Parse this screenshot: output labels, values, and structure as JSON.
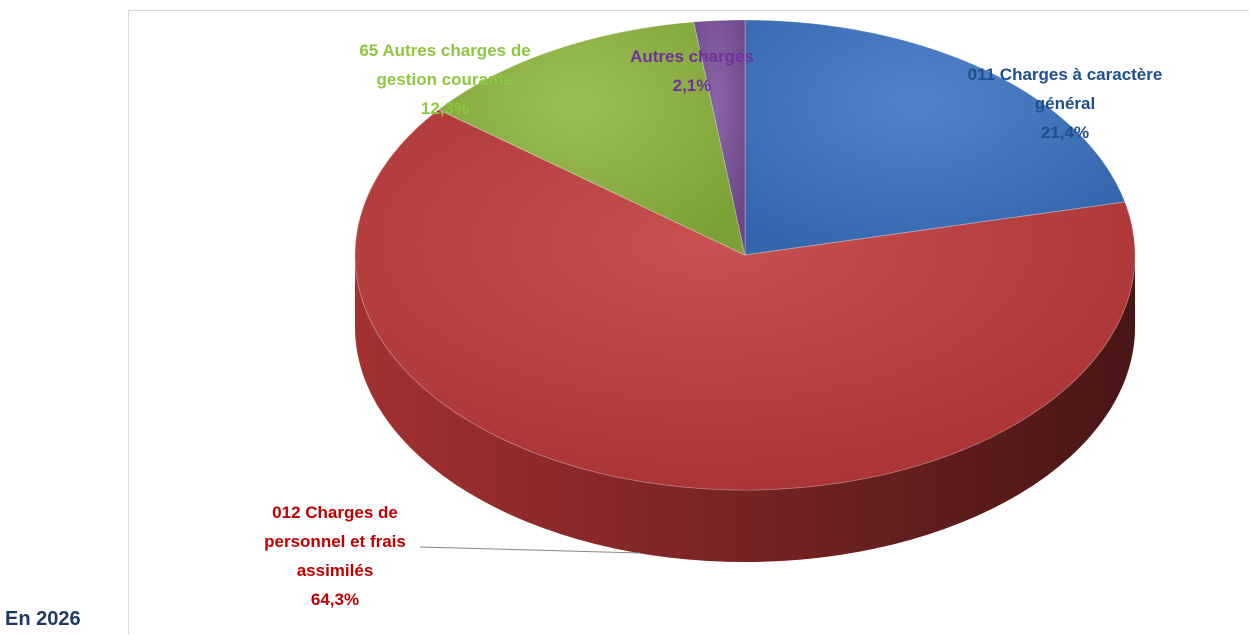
{
  "heading": "En 2026",
  "chart_data": {
    "type": "pie",
    "categories": [
      "011 Charges à caractère général",
      "012 Charges de personnel et frais assimilés",
      "65 Autres charges de gestion courante",
      "Autres charges"
    ],
    "values": [
      21.4,
      64.3,
      12.3,
      2.1
    ],
    "value_labels": [
      "21,4%",
      "64,3%",
      "12,3%",
      "2,1%"
    ],
    "colors": [
      "#3b73c4",
      "#c0393a",
      "#8db63c",
      "#7a4f9a"
    ],
    "label_colors": [
      "#1f4e8c",
      "#c00000",
      "#8ec63f",
      "#7030a0"
    ]
  }
}
